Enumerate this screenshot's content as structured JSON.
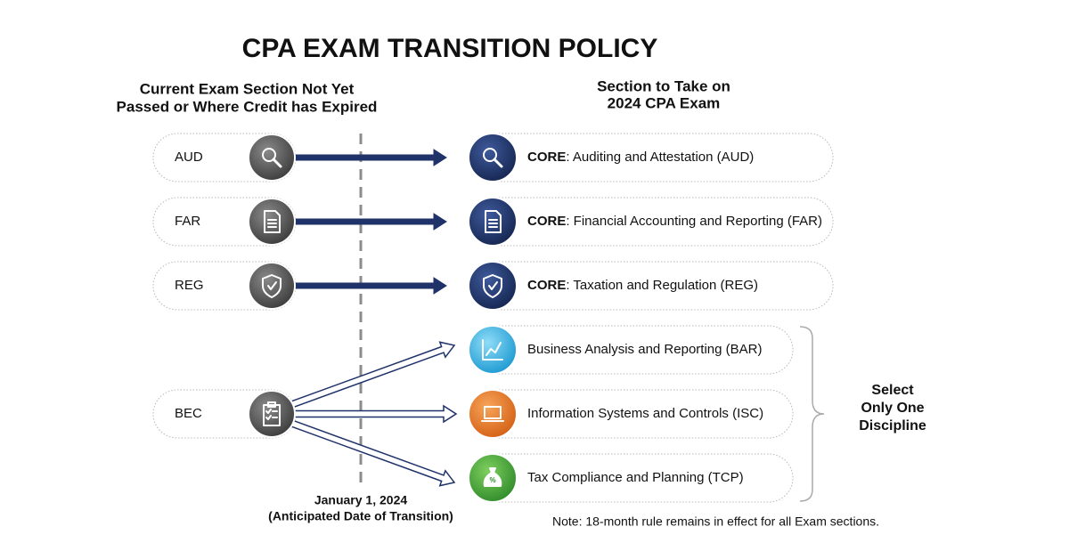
{
  "title": "CPA EXAM TRANSITION POLICY",
  "left_header": [
    "Current Exam Section Not Yet",
    "Passed or Where Credit has Expired"
  ],
  "right_header": [
    "Section to Take on",
    "2024 CPA Exam"
  ],
  "current_sections": [
    {
      "label": "AUD",
      "icon": "search"
    },
    {
      "label": "FAR",
      "icon": "document"
    },
    {
      "label": "REG",
      "icon": "shield"
    },
    {
      "label": "BEC",
      "icon": "clipboard"
    }
  ],
  "new_sections": [
    {
      "prefix": "CORE",
      "text": ": Auditing and Attestation (AUD)",
      "icon": "search"
    },
    {
      "prefix": "CORE",
      "text": ": Financial Accounting and Reporting (FAR)",
      "icon": "document"
    },
    {
      "prefix": "CORE",
      "text": ": Taxation and Regulation (REG)",
      "icon": "shield"
    },
    {
      "text": "Business Analysis and Reporting (BAR)",
      "icon": "chart"
    },
    {
      "text": "Information Systems and Controls (ISC)",
      "icon": "laptop"
    },
    {
      "text": "Tax Compliance and Planning (TCP)",
      "icon": "moneybag"
    }
  ],
  "select_note": [
    "Select",
    "Only One",
    "Discipline"
  ],
  "date_label": [
    "January 1, 2024",
    "(Anticipated Date of Transition)"
  ],
  "note": "Note:  18-month rule remains in effect for all Exam sections."
}
